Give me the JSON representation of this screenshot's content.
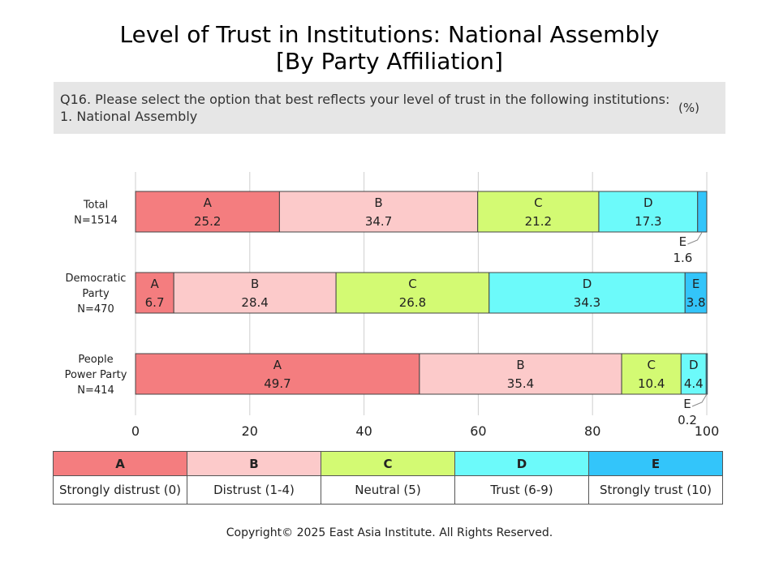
{
  "title_line1": "Level of Trust in Institutions: National Assembly",
  "title_line2": "[By Party Affiliation]",
  "question_line1": "Q16. Please select the option that best reflects your level of trust in the following institutions:",
  "question_line2": "1. National Assembly",
  "unit": "(%)",
  "copyright": "Copyright© 2025 East Asia Institute. All Rights Reserved.",
  "legend": [
    {
      "code": "A",
      "label": "Strongly distrust (0)",
      "color": "#f47d7f"
    },
    {
      "code": "B",
      "label": "Distrust (1-4)",
      "color": "#fccaca"
    },
    {
      "code": "C",
      "label": "Neutral (5)",
      "color": "#d3fa73"
    },
    {
      "code": "D",
      "label": "Trust (6-9)",
      "color": "#6cfafa"
    },
    {
      "code": "E",
      "label": "Strongly trust (10)",
      "color": "#33c5fa"
    }
  ],
  "chart_data": {
    "type": "bar",
    "orientation": "horizontal",
    "stacked": true,
    "xlim": [
      0,
      100
    ],
    "xticks": [
      "0",
      "20",
      "40",
      "60",
      "80",
      "100"
    ],
    "grid": true,
    "categories": [
      [
        "Total",
        "N=1514"
      ],
      [
        "Democratic",
        "Party",
        "N=470"
      ],
      [
        "People",
        "Power Party",
        "N=414"
      ]
    ],
    "series": [
      {
        "name": "A",
        "values": [
          25.2,
          6.7,
          49.7
        ]
      },
      {
        "name": "B",
        "values": [
          34.7,
          28.4,
          35.4
        ]
      },
      {
        "name": "C",
        "values": [
          21.2,
          26.8,
          10.4
        ]
      },
      {
        "name": "D",
        "values": [
          17.3,
          34.3,
          4.4
        ]
      },
      {
        "name": "E",
        "values": [
          1.6,
          3.8,
          0.2
        ]
      }
    ],
    "callouts": [
      {
        "category": 0,
        "series": 4
      },
      {
        "category": 2,
        "series": 4
      }
    ]
  }
}
